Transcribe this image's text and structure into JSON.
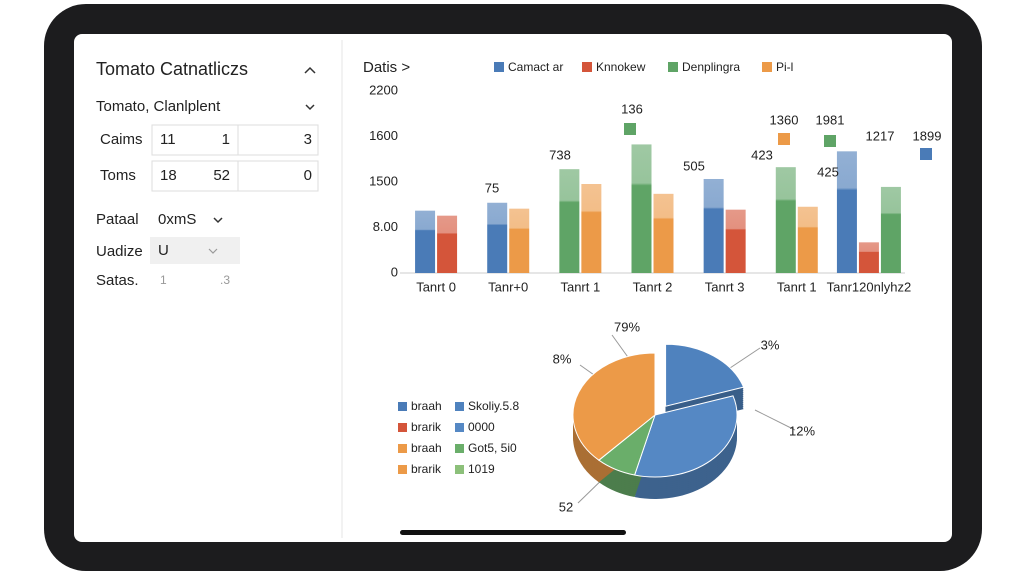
{
  "sidebar": {
    "title": "Tomato Catnatliczs",
    "dropdown": "Tomato, Clanlplent",
    "rows": [
      {
        "label": "Caims",
        "cells": [
          "11",
          "1",
          "3"
        ]
      },
      {
        "label": "Toms",
        "cells": [
          "18",
          "52",
          "0"
        ]
      }
    ],
    "fields": [
      {
        "label": "Pataal",
        "value": "0xmS"
      },
      {
        "label": "Uadize",
        "value": "U"
      },
      {
        "label": "Satas.",
        "value": "1",
        "extra": ".3"
      }
    ]
  },
  "chart_data": [
    {
      "type": "bar",
      "title": "Datis >",
      "categories": [
        "Tanrt 0",
        "Tanr+0",
        "Tanrt 1",
        "Tanrt 2",
        "Tanrt 3",
        "Tanrt 1",
        "Tanr120nlyhz2"
      ],
      "series": [
        {
          "name": "Camact ar",
          "color": "#4a7bb7",
          "values": [
            685,
            772,
            null,
            null,
            1033,
            null,
            1337
          ]
        },
        {
          "name": "Knnokew",
          "color": "#d4553a",
          "values": [
            630,
            null,
            null,
            null,
            696,
            null,
            337
          ]
        },
        {
          "name": "Denplingra",
          "color": "#5fa466",
          "values": [
            null,
            null,
            1141,
            1413,
            null,
            1163,
            946
          ]
        },
        {
          "name": "Pi-l",
          "color": "#ec9a48",
          "values": [
            null,
            707,
            978,
            870,
            null,
            728,
            null
          ]
        }
      ],
      "ylim": [
        0,
        2000
      ],
      "yticks": [
        0,
        {
          "value": 500,
          "label": "8.00"
        },
        {
          "value": 1000,
          "label": "1500"
        },
        {
          "value": 1500,
          "label": "1600"
        },
        {
          "value": 2000,
          "label": "2200"
        }
      ],
      "annotations": [
        "75",
        "738",
        "136",
        "505",
        "423",
        "1360",
        "1981",
        "425",
        "1217",
        "1899"
      ],
      "grid": false
    },
    {
      "type": "pie",
      "categories": [
        "Skoliy.5.8",
        "0000",
        "Got5, 5i0",
        "braah"
      ],
      "values": [
        20,
        34,
        8,
        38
      ],
      "colors": [
        "#4f82be",
        "#5588c4",
        "#6aae6a",
        "#ec9a48"
      ],
      "annotations": [
        "79%",
        "8%",
        "3%",
        "12%",
        "52"
      ],
      "legend": [
        {
          "name": "braah",
          "color": "#4a7bb7"
        },
        {
          "name": "brarik",
          "color": "#d4553a"
        },
        {
          "name": "braah",
          "color": "#ec9a48"
        },
        {
          "name": "brarik",
          "color": "#ec9a48"
        },
        {
          "name": "Skoliy.5.8",
          "color": "#4f82be"
        },
        {
          "name": "0000",
          "color": "#5588c4"
        },
        {
          "name": "Got5, 5i0",
          "color": "#6aae6a"
        },
        {
          "name": "1019",
          "color": "#8cc07a"
        }
      ]
    }
  ]
}
